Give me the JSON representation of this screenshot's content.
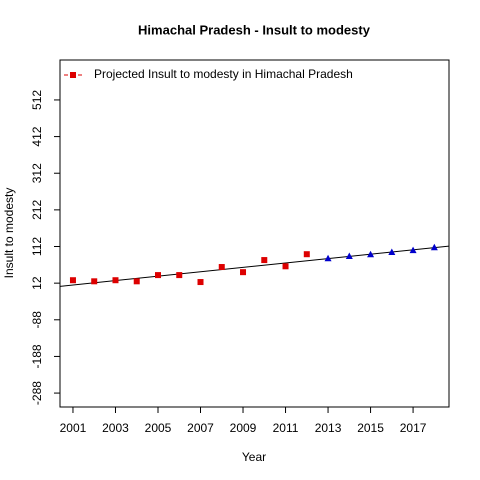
{
  "chart_data": {
    "type": "scatter",
    "title": "Himachal Pradesh  -  Insult to modesty",
    "xlabel": "Year",
    "ylabel": "Insult to modesty",
    "xlim": [
      2000.39,
      2018.69
    ],
    "ylim": [
      -326,
      621
    ],
    "xticks": [
      2001,
      2003,
      2005,
      2007,
      2009,
      2011,
      2013,
      2015,
      2017
    ],
    "yticks": [
      -288,
      -188,
      -88,
      12,
      112,
      212,
      312,
      412,
      512
    ],
    "legend": "top-left",
    "series": [
      {
        "name": "Projected  Insult to modesty  in  Himachal Pradesh",
        "color": "#dd0000",
        "marker": "square",
        "x": [
          2001,
          2002,
          2003,
          2004,
          2005,
          2006,
          2007,
          2008,
          2009,
          2010,
          2011,
          2012
        ],
        "values": [
          20,
          17,
          20,
          17,
          34,
          34,
          15,
          56,
          42,
          75,
          58,
          91
        ]
      },
      {
        "color": "#0000cc",
        "marker": "triangle",
        "x": [
          2013,
          2014,
          2015,
          2016,
          2017,
          2018
        ],
        "values": [
          80,
          86,
          91,
          97,
          102,
          110
        ]
      }
    ],
    "trend": {
      "color": "#000000",
      "x": [
        2001,
        2018
      ],
      "values": [
        7,
        109
      ]
    }
  }
}
